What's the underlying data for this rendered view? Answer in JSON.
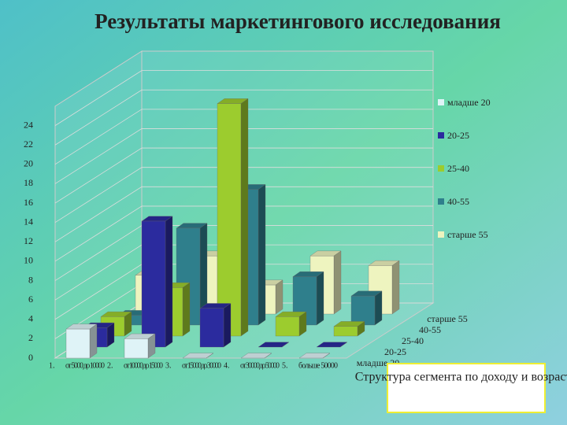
{
  "chart_data": {
    "type": "bar3d",
    "title": "Результаты маркетингового исследования",
    "annotation": "Структура сегмента по доходу и возрасту",
    "category_numbers": [
      "1.",
      "2.",
      "3.",
      "4.",
      "5."
    ],
    "categories": [
      "от 5000 до 10000",
      "от 10000 до 15000",
      "от 15000 до 30000",
      "от 30000 до 50000",
      "больше 50000"
    ],
    "series": [
      {
        "name": "младше 20",
        "color": "#dff3f7",
        "values": [
          3,
          2,
          0,
          0,
          0
        ]
      },
      {
        "name": "20-25",
        "color": "#2b2b9e",
        "values": [
          2,
          13,
          4,
          0,
          0
        ]
      },
      {
        "name": "25-40",
        "color": "#9ccc2e",
        "values": [
          2,
          5,
          24,
          2,
          1
        ]
      },
      {
        "name": "40-55",
        "color": "#2f7f8c",
        "values": [
          1,
          10,
          14,
          5,
          3
        ]
      },
      {
        "name": "старше 55",
        "color": "#eef4bf",
        "values": [
          4,
          6,
          3,
          6,
          5
        ]
      }
    ],
    "ylim": [
      0,
      26
    ],
    "yticks": [
      0,
      2,
      4,
      6,
      8,
      10,
      12,
      14,
      16,
      18,
      20,
      22,
      24
    ],
    "grid": true
  }
}
